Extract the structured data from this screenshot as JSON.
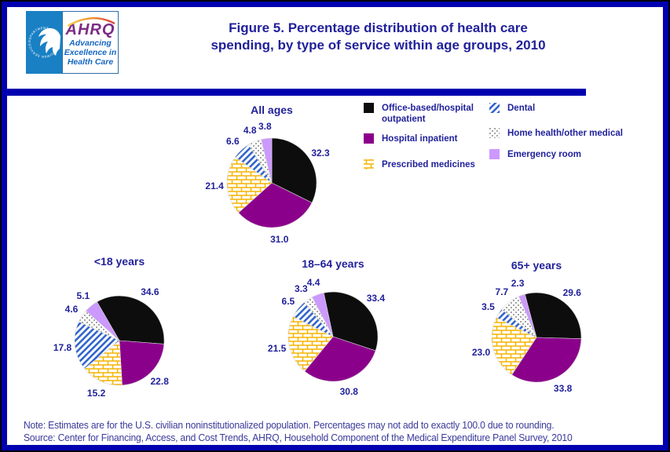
{
  "header": {
    "logo": {
      "seal_text": "DEPARTMENT OF HEALTH & HUMAN SERVICES • USA",
      "ahrq": "AHRQ",
      "tagline_lines": [
        "Advancing",
        "Excellence in",
        "Health Care"
      ]
    },
    "title_lines": [
      "Figure 5. Percentage distribution of health care",
      "spending, by type of service within age groups, 2010"
    ]
  },
  "legend": {
    "items": [
      "Office-based/hospital outpatient",
      "Hospital inpatient",
      "Prescribed medicines",
      "Dental",
      "Home health/other medical",
      "Emergency room"
    ]
  },
  "chart_data": {
    "type": "pie",
    "unit": "percent",
    "legend_position": "top-right, two columns",
    "categories": [
      "Office-based/hospital outpatient",
      "Hospital inpatient",
      "Prescribed medicines",
      "Dental",
      "Home health/other medical",
      "Emergency room"
    ],
    "pies": [
      {
        "title": "All ages",
        "values": [
          32.3,
          31.0,
          21.4,
          6.6,
          4.8,
          3.8
        ]
      },
      {
        "title": "<18 years",
        "values": [
          34.6,
          22.8,
          15.2,
          17.8,
          4.6,
          5.1
        ]
      },
      {
        "title": "18–64 years",
        "values": [
          33.4,
          30.8,
          21.5,
          6.5,
          3.3,
          4.4
        ]
      },
      {
        "title": "65+ years",
        "values": [
          29.6,
          33.8,
          23.0,
          3.5,
          7.7,
          2.3
        ]
      }
    ]
  },
  "notes": {
    "line1": "Note: Estimates are for the U.S. civilian noninstitutionalized population. Percentages may not add to exactly 100.0 due to rounding.",
    "line2": "Source: Center for Financing, Access, and Cost Trends, AHRQ, Household Component of the Medical Expenditure Panel Survey, 2010"
  },
  "colors": {
    "frame_navy": "#0101B0",
    "text_navy": "#21219B",
    "note_navy": "#3A3A9B",
    "hhs_blue": "#1980C4",
    "ahrq_purple": "#7B2C85",
    "tagline_blue": "#1566C3",
    "slice_black": "#0D0D0D",
    "slice_purple": "#8B008B",
    "slice_lavender": "#CC99FF",
    "dental_blue": "#3366CC",
    "brick_gold": "#F5B400",
    "dot_gray": "#999999"
  }
}
